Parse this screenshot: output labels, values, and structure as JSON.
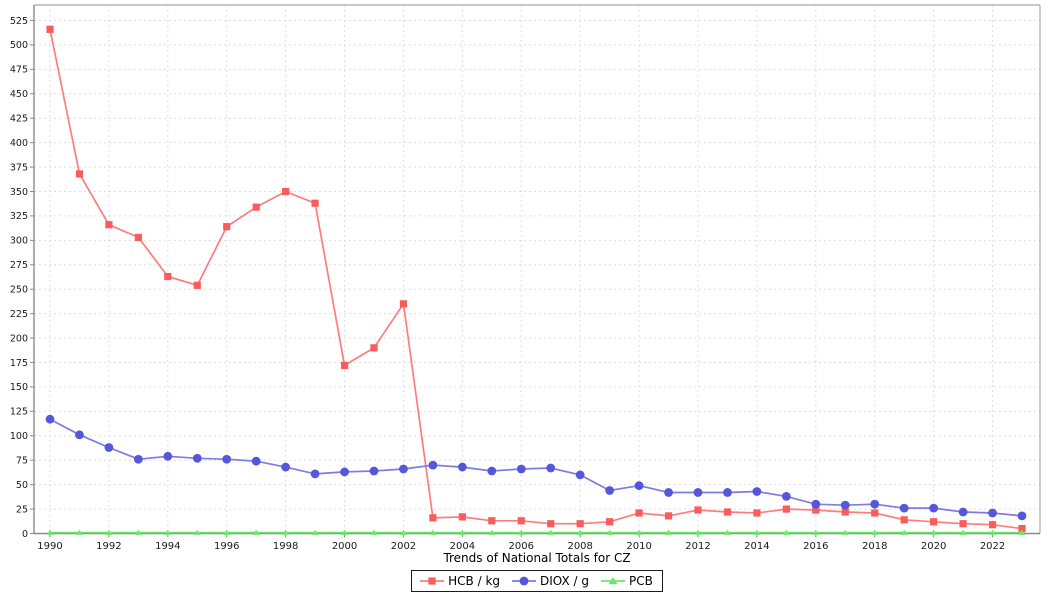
{
  "chart_data": {
    "type": "line",
    "title": "Trends of National Totals for CZ",
    "xlabel": "",
    "ylabel": "",
    "x": [
      1990,
      1991,
      1992,
      1993,
      1994,
      1995,
      1996,
      1997,
      1998,
      1999,
      2000,
      2001,
      2002,
      2003,
      2004,
      2005,
      2006,
      2007,
      2008,
      2009,
      2010,
      2011,
      2012,
      2013,
      2014,
      2015,
      2016,
      2017,
      2018,
      2019,
      2020,
      2021,
      2022,
      2023
    ],
    "xtick_labels": [
      "1990",
      "1992",
      "1994",
      "1996",
      "1998",
      "2000",
      "2002",
      "2004",
      "2006",
      "2008",
      "2010",
      "2012",
      "2014",
      "2016",
      "2018",
      "2020",
      "2022"
    ],
    "ytick_labels": [
      "0",
      "25",
      "50",
      "75",
      "100",
      "125",
      "150",
      "175",
      "200",
      "225",
      "250",
      "275",
      "300",
      "325",
      "350",
      "375",
      "400",
      "425",
      "450",
      "475",
      "500",
      "525"
    ],
    "ylim": [
      0,
      537
    ],
    "grid": true,
    "legend_position": "bottom-center",
    "series": [
      {
        "name": "HCB / kg",
        "marker": "square",
        "color": "#f85c5c",
        "line_color": "#fb7d7d",
        "values": [
          516,
          368,
          316,
          303,
          263,
          254,
          314,
          334,
          350,
          338,
          172,
          190,
          235,
          16,
          17,
          13,
          13,
          10,
          10,
          12,
          21,
          18,
          24,
          22,
          21,
          25,
          24,
          22,
          21,
          14,
          12,
          10,
          9,
          5
        ]
      },
      {
        "name": "DIOX / g",
        "marker": "circle",
        "color": "#5656d8",
        "line_color": "#7c7ce4",
        "values": [
          117,
          101,
          88,
          76,
          79,
          77,
          76,
          74,
          68,
          61,
          63,
          64,
          66,
          70,
          68,
          64,
          66,
          67,
          60,
          44,
          49,
          42,
          42,
          42,
          43,
          38,
          30,
          29,
          30,
          26,
          26,
          22,
          21,
          18
        ]
      },
      {
        "name": "PCB",
        "marker": "triangle",
        "color": "#69e869",
        "line_color": "#69e869",
        "values": [
          1,
          1,
          1,
          1,
          1,
          1,
          1,
          1,
          1,
          1,
          1,
          1,
          1,
          1,
          1,
          1,
          1,
          1,
          1,
          1,
          1,
          1,
          1,
          1,
          1,
          1,
          1,
          1,
          1,
          1,
          1,
          1,
          1,
          1
        ]
      }
    ],
    "colors": {
      "grid": "#dedede",
      "axis": "#8a8a8a",
      "border": "#b6b6b6",
      "background": "#ffffff",
      "text": "#1a1a1a"
    }
  }
}
